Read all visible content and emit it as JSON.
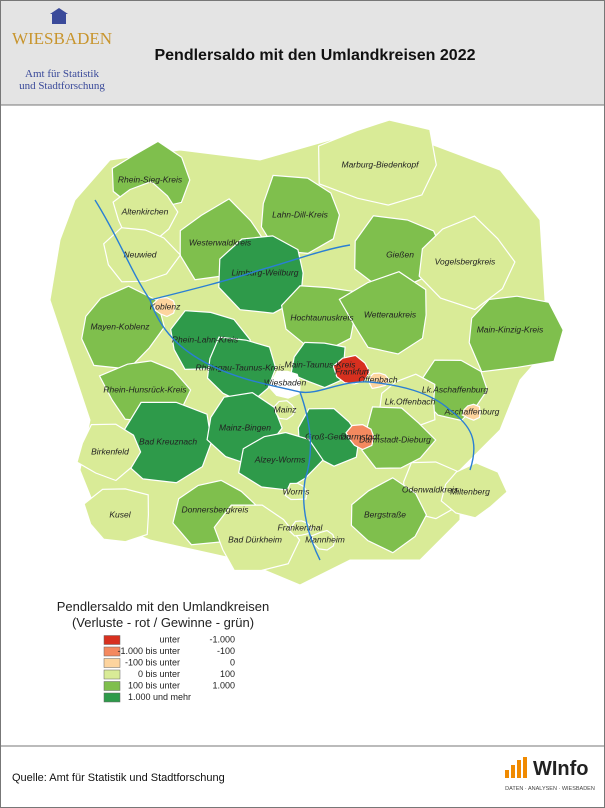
{
  "header": {
    "logo": {
      "name": "WIESBADEN",
      "line1": "Amt für Statistik",
      "line2": "und Stadtforschung"
    },
    "title": "Pendlersaldo mit den Umlandkreisen 2022"
  },
  "map": {
    "regions": [
      {
        "name": "Rhein-Sieg-Kreis",
        "class": 4
      },
      {
        "name": "Altenkirchen",
        "class": 3
      },
      {
        "name": "Marburg-Biedenkopf",
        "class": 3
      },
      {
        "name": "Lahn-Dill-Kreis",
        "class": 4
      },
      {
        "name": "Westerwaldkreis",
        "class": 4
      },
      {
        "name": "Neuwied",
        "class": 3
      },
      {
        "name": "Gießen",
        "class": 4
      },
      {
        "name": "Vogelsbergkreis",
        "class": 3
      },
      {
        "name": "Limburg-Weilburg",
        "class": 5
      },
      {
        "name": "Hochtaunuskreis",
        "class": 4
      },
      {
        "name": "Wetteraukreis",
        "class": 4
      },
      {
        "name": "Mayen-Koblenz",
        "class": 4
      },
      {
        "name": "Main-Kinzig-Kreis",
        "class": 4
      },
      {
        "name": "Rhein-Lahn-Kreis",
        "class": 5
      },
      {
        "name": "Rheingau-Taunus-Kreis",
        "class": 5
      },
      {
        "name": "Main-Taunus-Kreis",
        "class": 5
      },
      {
        "name": "Rhein-Hunsrück-Kreis",
        "class": 4
      },
      {
        "name": "Lk.Aschaffenburg",
        "class": 4
      },
      {
        "name": "Lk.Offenbach",
        "class": 3
      },
      {
        "name": "Bad Kreuznach",
        "class": 5
      },
      {
        "name": "Mainz-Bingen",
        "class": 5
      },
      {
        "name": "Groß-Gerau",
        "class": 5
      },
      {
        "name": "Darmstadt-Dieburg",
        "class": 4
      },
      {
        "name": "Birkenfeld",
        "class": 3
      },
      {
        "name": "Alzey-Worms",
        "class": 5
      },
      {
        "name": "Odenwaldkreis",
        "class": 3
      },
      {
        "name": "Miltenberg",
        "class": 3
      },
      {
        "name": "Kusel",
        "class": 3
      },
      {
        "name": "Donnersbergkreis",
        "class": 4
      },
      {
        "name": "Bergstraße",
        "class": 4
      },
      {
        "name": "Bad Dürkheim",
        "class": 3
      },
      {
        "name": "Koblenz",
        "class": 2
      },
      {
        "name": "Frankfurt",
        "class": 0
      },
      {
        "name": "Offenbach",
        "class": 2
      },
      {
        "name": "Wiesbaden"
      },
      {
        "name": "Mainz",
        "class": 3
      },
      {
        "name": "Aschaffenburg",
        "class": 2
      },
      {
        "name": "Darmstadt",
        "class": 1
      },
      {
        "name": "Worms",
        "class": 3
      },
      {
        "name": "Frankenthal",
        "class": 3
      },
      {
        "name": "Mannheim",
        "class": 3
      }
    ]
  },
  "legend": {
    "title": [
      "Pendlersaldo mit den Umlandkreisen",
      "(Verluste - rot / Gewinne - grün)"
    ],
    "classes": [
      {
        "label": "unter",
        "limit": "-1.000",
        "color": "#d7301f"
      },
      {
        "label": "-1.000 bis unter",
        "limit": "-100",
        "color": "#f4895f"
      },
      {
        "label": "-100 bis unter",
        "limit": "0",
        "color": "#fdd49e"
      },
      {
        "label": "0 bis unter",
        "limit": "100",
        "color": "#d9eb97"
      },
      {
        "label": "100 bis unter",
        "limit": "1.000",
        "color": "#7fbf4d"
      },
      {
        "label": "1.000 und mehr",
        "color": "#2e9a4a"
      }
    ]
  },
  "footer": {
    "source": "Quelle: Amt für Statistik und Stadtforschung",
    "logo": {
      "name": "WInfo",
      "tagline": "DATEN · ANALYSEN · WIESBADEN"
    }
  }
}
